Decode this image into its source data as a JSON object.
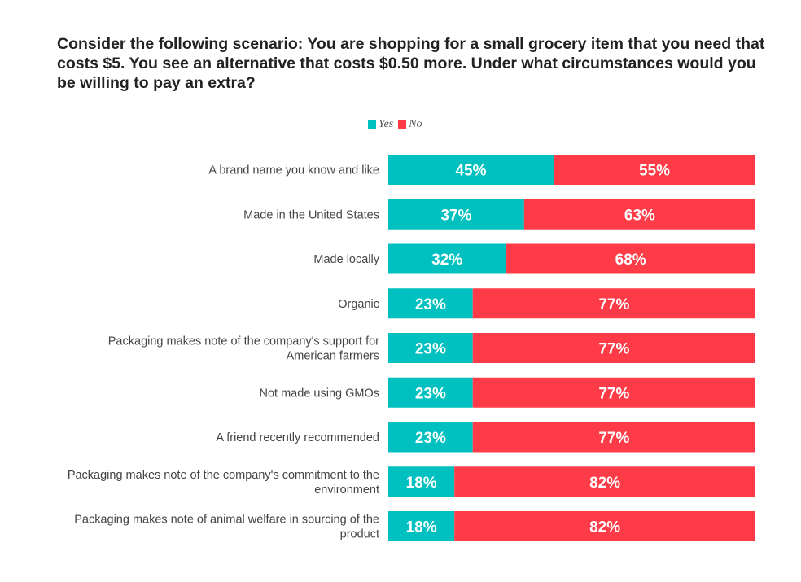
{
  "chart_data": {
    "type": "bar",
    "orientation": "horizontal",
    "stacked": true,
    "title": "Consider the following scenario: You are shopping for a small grocery item that you need that costs $5. You see an alternative that costs $0.50 more. Under what circumstances would you be willing to pay an extra?",
    "legend_position": "top-center",
    "categories": [
      "A brand name you know and like",
      "Made in the United States",
      "Made locally",
      "Organic",
      "Packaging makes note of the company's support for American farmers",
      "Not made using GMOs",
      "A friend recently recommended",
      "Packaging makes note of the company's commitment to the environment",
      "Packaging makes note of animal welfare in sourcing of the product"
    ],
    "category_lines": [
      [
        "A brand name you know and like"
      ],
      [
        "Made in the United States"
      ],
      [
        "Made locally"
      ],
      [
        "Organic"
      ],
      [
        "Packaging makes note of the company's support for",
        "American farmers"
      ],
      [
        "Not made using GMOs"
      ],
      [
        "A friend recently recommended"
      ],
      [
        "Packaging makes note of the company's commitment to the",
        "environment"
      ],
      [
        "Packaging makes note of animal welfare in sourcing of the",
        "product"
      ]
    ],
    "series": [
      {
        "name": "Yes",
        "color": "#00C0C0",
        "values": [
          45,
          37,
          32,
          23,
          23,
          23,
          23,
          18,
          18
        ],
        "labels": [
          "45%",
          "37%",
          "32%",
          "23%",
          "23%",
          "23%",
          "23%",
          "18%",
          "18%"
        ]
      },
      {
        "name": "No",
        "color": "#FF3B47",
        "values": [
          55,
          63,
          68,
          77,
          77,
          77,
          77,
          82,
          82
        ],
        "labels": [
          "55%",
          "63%",
          "68%",
          "77%",
          "77%",
          "77%",
          "77%",
          "82%",
          "82%"
        ]
      }
    ],
    "xlim": [
      0,
      100
    ],
    "grid": false
  }
}
